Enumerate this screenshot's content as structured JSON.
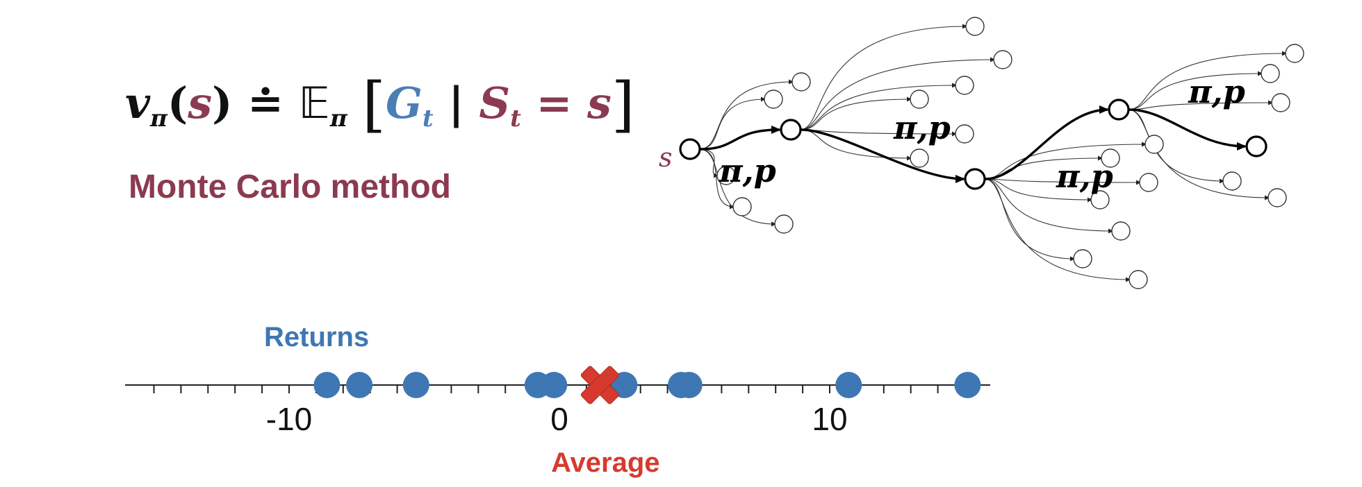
{
  "formula": {
    "v": "v",
    "pi_sub": "π",
    "open_paren": "(",
    "s_arg": "s",
    "close_paren": ")",
    "def_eq": "≐",
    "expect": "𝔼",
    "expect_sub": "π",
    "lbracket": "[",
    "G": "G",
    "G_sub": "t",
    "bar": "|",
    "S": "S",
    "S_sub": "t",
    "eq": "=",
    "s_val": "s",
    "rbracket": "]"
  },
  "method_title": "Monte Carlo method",
  "tree": {
    "start_label": "s",
    "policy_label": "π,p"
  },
  "chart_data": {
    "type": "scatter",
    "title": "",
    "series_label": "Returns",
    "average_label": "Average",
    "x_range": [
      -16,
      16
    ],
    "tick_labels": [
      {
        "value": -10,
        "text": "-10"
      },
      {
        "value": 0,
        "text": "0"
      },
      {
        "value": 10,
        "text": "10"
      }
    ],
    "returns": [
      -8.6,
      -7.4,
      -5.3,
      -0.8,
      -0.2,
      2.4,
      4.5,
      4.8,
      10.7,
      15.1
    ],
    "average": 1.5,
    "colors": {
      "returns": "#3e77b3",
      "average": "#d63a2f"
    }
  }
}
